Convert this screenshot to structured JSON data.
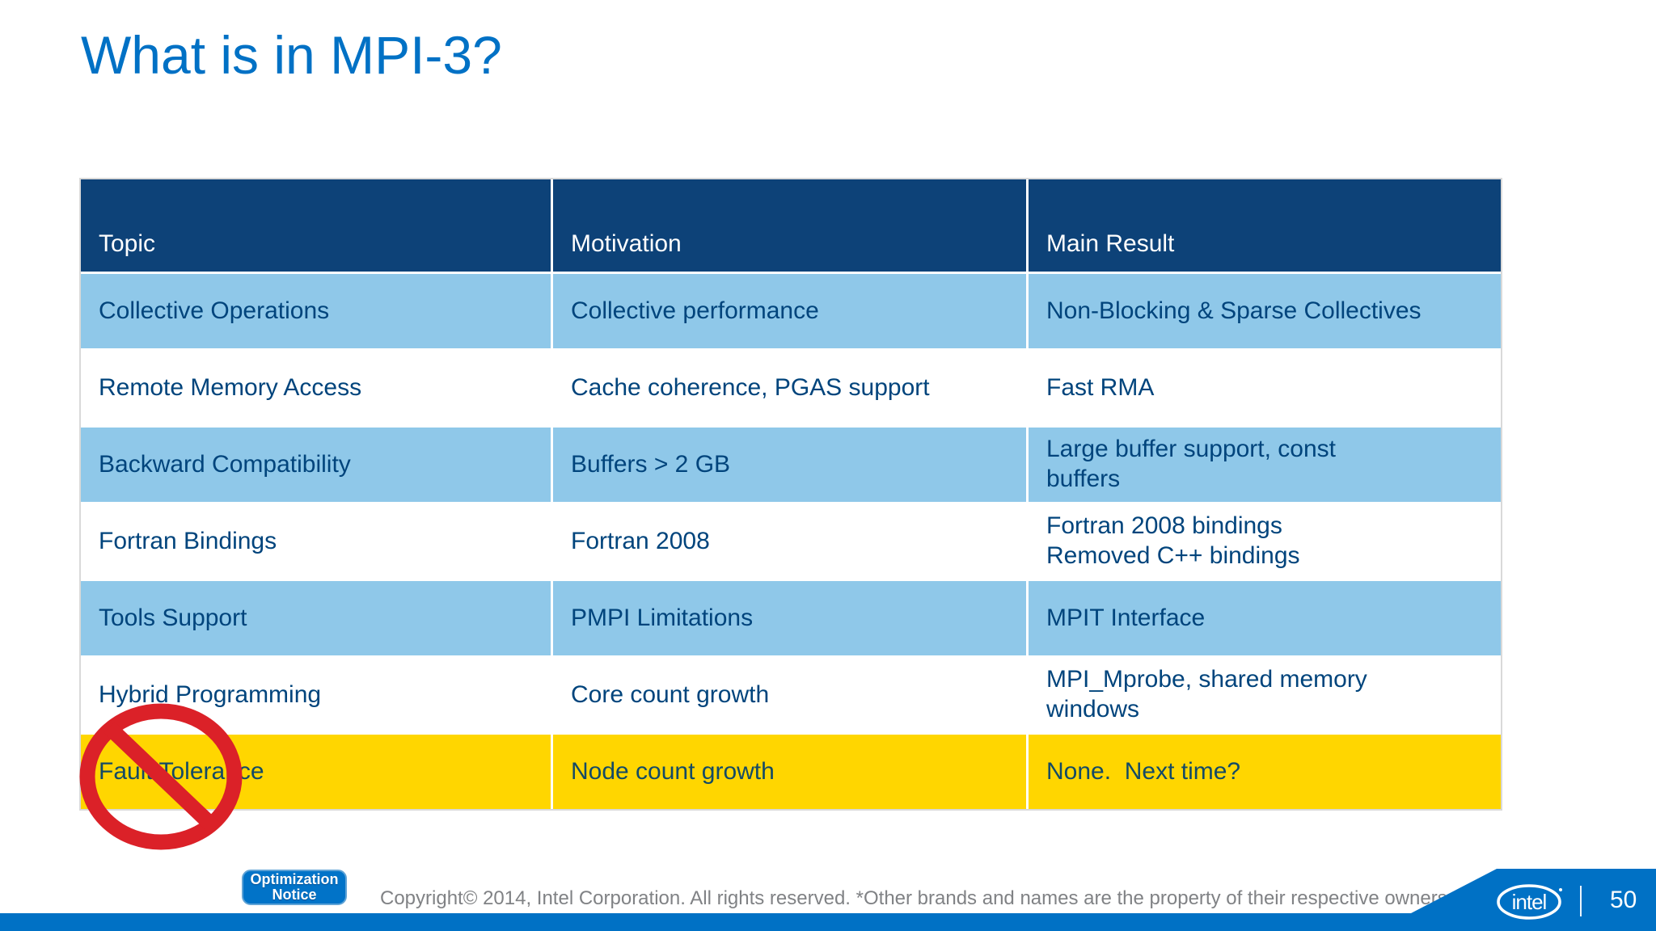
{
  "title": "What is in MPI-3?",
  "table": {
    "headers": [
      "Topic",
      "Motivation",
      "Main Result"
    ],
    "rows": [
      {
        "style": "blue",
        "topic": "Collective Operations",
        "motivation": "Collective performance",
        "result": "Non-Blocking & Sparse Collectives"
      },
      {
        "style": "white",
        "topic": "Remote Memory Access",
        "motivation": "Cache coherence, PGAS support",
        "result": "Fast RMA"
      },
      {
        "style": "blue",
        "topic": "Backward Compatibility",
        "motivation": "Buffers > 2 GB",
        "result": "Large buffer support, const\nbuffers"
      },
      {
        "style": "white",
        "topic": "Fortran Bindings",
        "motivation": "Fortran 2008",
        "result": "Fortran 2008 bindings\nRemoved C++ bindings"
      },
      {
        "style": "blue",
        "topic": "Tools Support",
        "motivation": "PMPI Limitations",
        "result": "MPIT Interface"
      },
      {
        "style": "white",
        "topic": "Hybrid Programming",
        "motivation": "Core count growth",
        "result": "MPI_Mprobe, shared memory\nwindows"
      },
      {
        "style": "yellow",
        "topic": "Fault Tolerance",
        "motivation": "Node count growth",
        "result": "None.  Next time?"
      }
    ]
  },
  "annotation": {
    "prohibition_sign": "no-symbol over Fault Tolerance row"
  },
  "footer": {
    "badge": {
      "line1": "Optimization",
      "line2": "Notice"
    },
    "copyright": "Copyright© 2014, Intel Corporation. All rights reserved. *Other brands and names are the property of their respective owners.",
    "logo": "intel",
    "page_number": "50"
  },
  "colors": {
    "title_blue": "#0071C5",
    "header_navy": "#0D4278",
    "row_light_blue": "#8FC8E9",
    "row_yellow": "#FFD600",
    "cell_text_navy": "#00447C",
    "footer_blue": "#0071C5",
    "copyright_gray": "#808285",
    "prohibition_red": "#DB2128"
  }
}
